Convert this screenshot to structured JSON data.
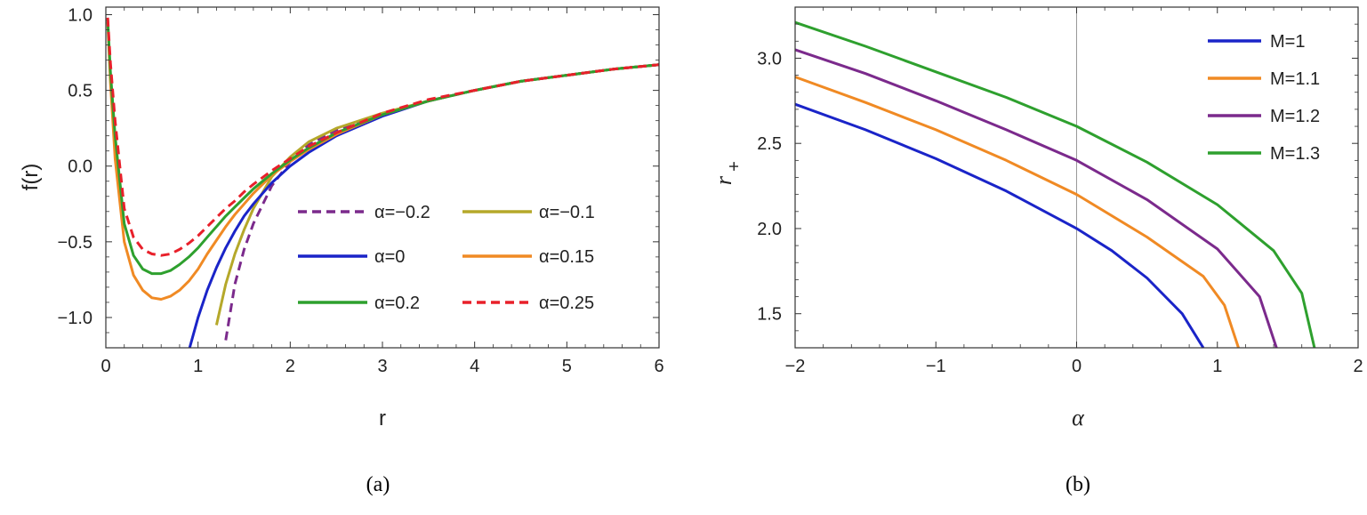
{
  "charts": {
    "a": {
      "caption": "(a)",
      "xlabel": "r",
      "ylabel": "f(r)",
      "xticks": [
        "0",
        "1",
        "2",
        "3",
        "4",
        "5",
        "6"
      ],
      "yticks": [
        "1.0",
        "0.5",
        "0.0",
        "−0.5",
        "−1.0"
      ]
    },
    "b": {
      "caption": "(b)",
      "xlabel": "α",
      "ylabel_main": "r",
      "ylabel_sub": "+",
      "xticks": [
        "−2",
        "−1",
        "0",
        "1",
        "2"
      ],
      "yticks": [
        "3.0",
        "2.5",
        "2.0",
        "1.5"
      ]
    }
  },
  "chart_data": [
    {
      "type": "line",
      "title": "",
      "xlabel": "r",
      "ylabel": "f(r)",
      "xlim": [
        0,
        6
      ],
      "ylim": [
        -1.2,
        1.05
      ],
      "legend_position": "lower-right",
      "x": [
        0.02,
        0.05,
        0.1,
        0.2,
        0.3,
        0.4,
        0.5,
        0.6,
        0.7,
        0.8,
        0.9,
        1.0,
        1.1,
        1.2,
        1.3,
        1.4,
        1.5,
        1.6,
        1.8,
        2.0,
        2.2,
        2.5,
        3.0,
        3.5,
        4.0,
        4.5,
        5.0,
        5.5,
        6.0
      ],
      "series": [
        {
          "name": "α=−0.2",
          "color": "#7B2A8C",
          "dash": "dashed",
          "values": [
            null,
            null,
            null,
            null,
            null,
            null,
            null,
            null,
            null,
            null,
            null,
            null,
            null,
            null,
            -1.15,
            -0.78,
            -0.55,
            -0.38,
            -0.13,
            0.03,
            0.14,
            0.24,
            0.34,
            0.43,
            0.5,
            0.56,
            0.6,
            0.64,
            0.67
          ]
        },
        {
          "name": "α=−0.1",
          "color": "#B5A82A",
          "dash": "solid",
          "values": [
            null,
            null,
            null,
            null,
            null,
            null,
            null,
            null,
            null,
            null,
            null,
            null,
            null,
            -1.05,
            -0.78,
            -0.58,
            -0.42,
            -0.28,
            -0.07,
            0.06,
            0.16,
            0.25,
            0.35,
            0.43,
            0.5,
            0.56,
            0.6,
            0.64,
            0.67
          ]
        },
        {
          "name": "α=0",
          "color": "#1A24C8",
          "dash": "solid",
          "values": [
            null,
            null,
            null,
            null,
            null,
            null,
            null,
            null,
            null,
            null,
            -1.22,
            -1.0,
            -0.82,
            -0.67,
            -0.54,
            -0.43,
            -0.33,
            -0.25,
            -0.11,
            0.0,
            0.09,
            0.2,
            0.33,
            0.43,
            0.5,
            0.56,
            0.6,
            0.64,
            0.67
          ]
        },
        {
          "name": "α=0.15",
          "color": "#F08A24",
          "dash": "solid",
          "values": [
            0.95,
            0.55,
            0.05,
            -0.5,
            -0.72,
            -0.82,
            -0.87,
            -0.88,
            -0.86,
            -0.82,
            -0.76,
            -0.68,
            -0.58,
            -0.49,
            -0.4,
            -0.32,
            -0.25,
            -0.18,
            -0.06,
            0.03,
            0.11,
            0.21,
            0.34,
            0.43,
            0.5,
            0.56,
            0.6,
            0.64,
            0.67
          ]
        },
        {
          "name": "α=0.2",
          "color": "#2EA02E",
          "dash": "solid",
          "values": [
            0.97,
            0.62,
            0.2,
            -0.38,
            -0.59,
            -0.68,
            -0.71,
            -0.71,
            -0.69,
            -0.65,
            -0.6,
            -0.54,
            -0.47,
            -0.4,
            -0.33,
            -0.27,
            -0.21,
            -0.15,
            -0.05,
            0.04,
            0.12,
            0.22,
            0.34,
            0.43,
            0.5,
            0.56,
            0.6,
            0.64,
            0.67
          ]
        },
        {
          "name": "α=0.25",
          "color": "#E8202A",
          "dash": "dashed",
          "values": [
            0.98,
            0.68,
            0.3,
            -0.28,
            -0.47,
            -0.55,
            -0.58,
            -0.59,
            -0.58,
            -0.55,
            -0.51,
            -0.46,
            -0.4,
            -0.34,
            -0.28,
            -0.23,
            -0.17,
            -0.12,
            -0.03,
            0.05,
            0.13,
            0.22,
            0.35,
            0.44,
            0.5,
            0.56,
            0.6,
            0.64,
            0.67
          ]
        }
      ]
    },
    {
      "type": "line",
      "title": "",
      "xlabel": "α",
      "ylabel": "r+",
      "xlim": [
        -2,
        2
      ],
      "ylim": [
        1.3,
        3.3
      ],
      "legend_position": "top-right",
      "series": [
        {
          "name": "M=1",
          "color": "#1A24C8",
          "x": [
            -2,
            -1.5,
            -1,
            -0.5,
            0,
            0.25,
            0.5,
            0.75,
            0.9
          ],
          "values": [
            2.73,
            2.58,
            2.41,
            2.22,
            2.0,
            1.87,
            1.71,
            1.5,
            1.3
          ]
        },
        {
          "name": "M=1.1",
          "color": "#F08A24",
          "x": [
            -2,
            -1.5,
            -1,
            -0.5,
            0,
            0.5,
            0.9,
            1.05,
            1.15
          ],
          "values": [
            2.89,
            2.74,
            2.58,
            2.4,
            2.2,
            1.95,
            1.72,
            1.55,
            1.3
          ]
        },
        {
          "name": "M=1.2",
          "color": "#7B2A8C",
          "x": [
            -2,
            -1.5,
            -1,
            -0.5,
            0,
            0.5,
            1.0,
            1.3,
            1.42
          ],
          "values": [
            3.05,
            2.91,
            2.75,
            2.58,
            2.4,
            2.17,
            1.88,
            1.6,
            1.3
          ]
        },
        {
          "name": "M=1.3",
          "color": "#2EA02E",
          "x": [
            -2,
            -1.5,
            -1,
            -0.5,
            0,
            0.5,
            1.0,
            1.4,
            1.6,
            1.69
          ],
          "values": [
            3.21,
            3.07,
            2.92,
            2.77,
            2.6,
            2.39,
            2.14,
            1.87,
            1.62,
            1.3
          ]
        }
      ]
    }
  ]
}
